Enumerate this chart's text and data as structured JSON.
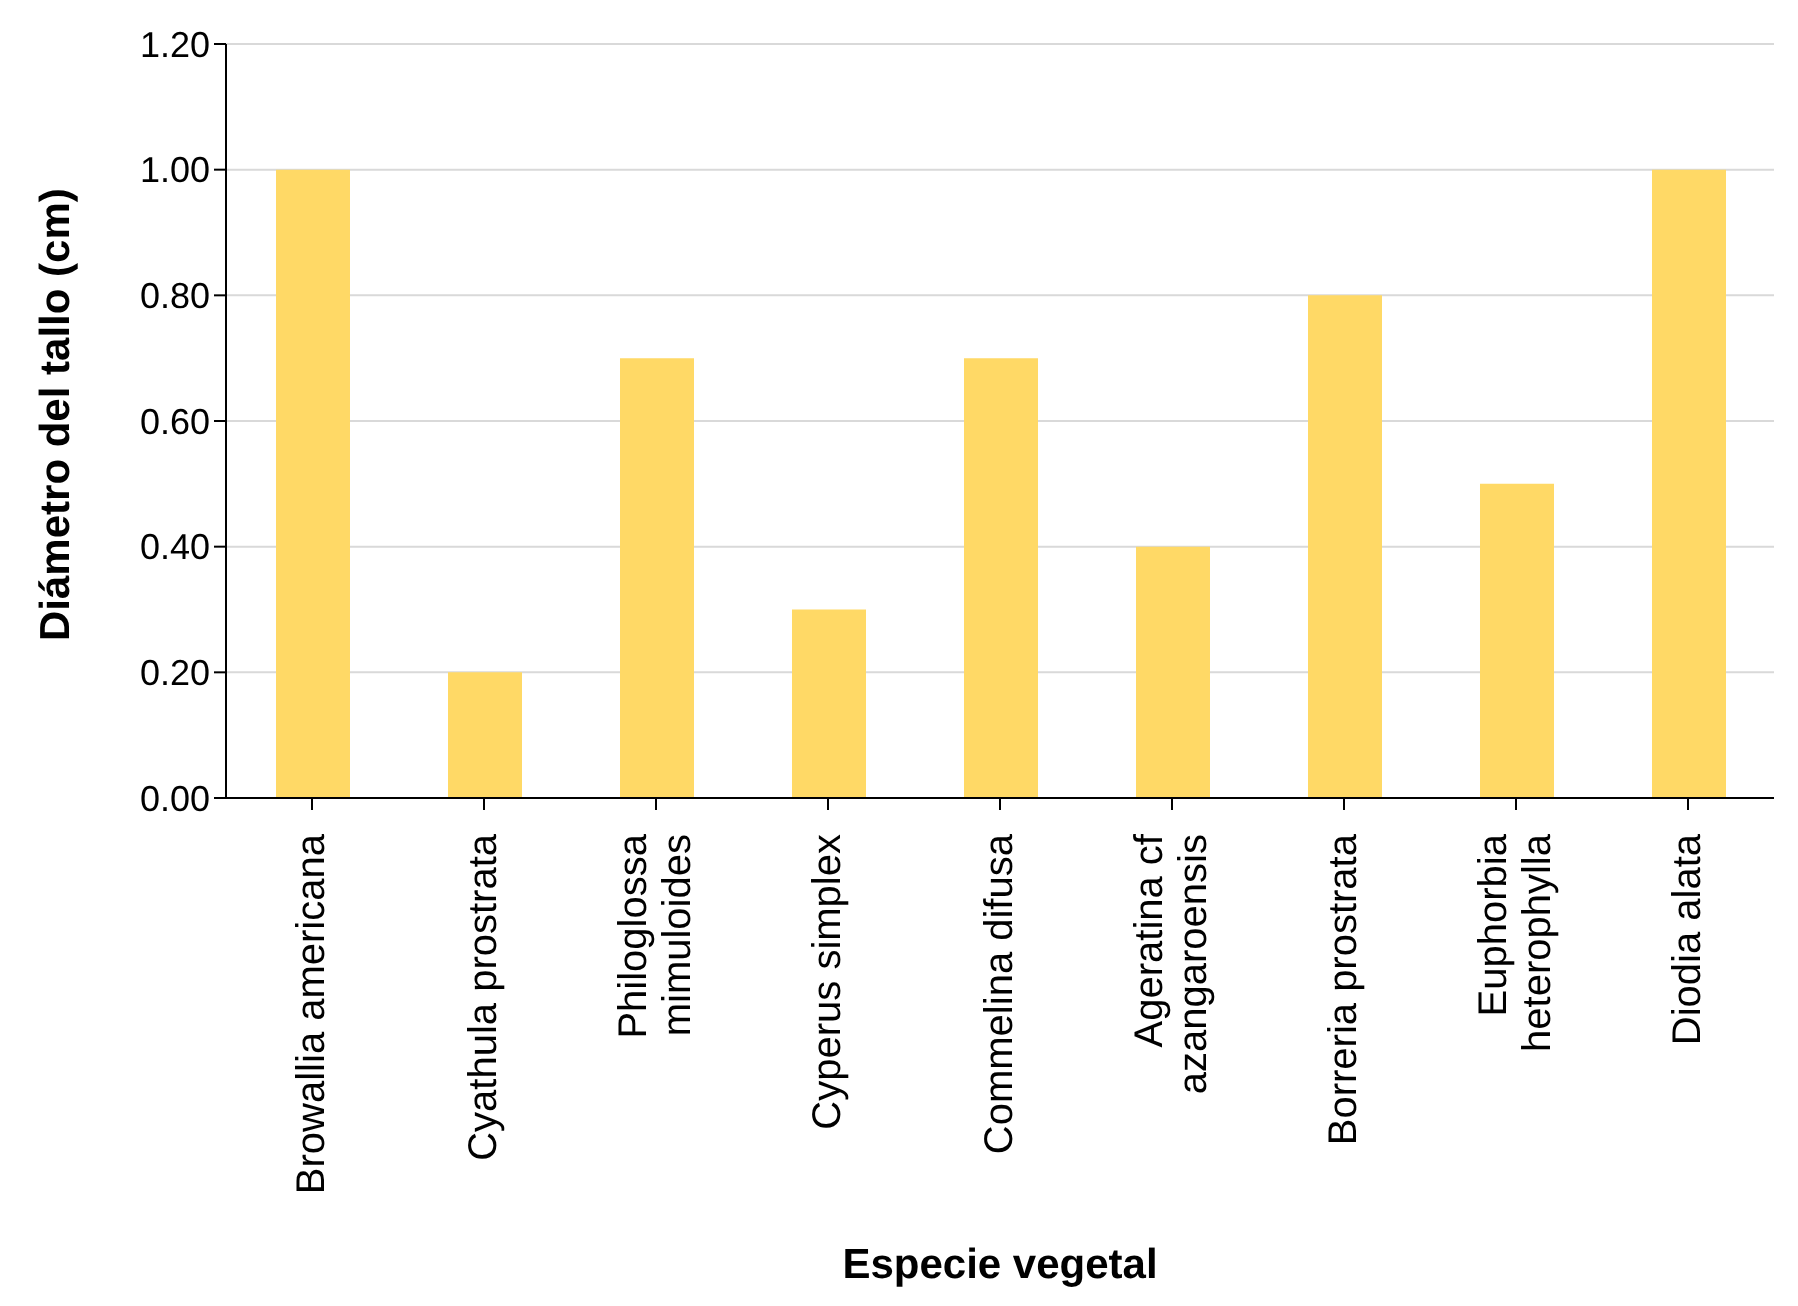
{
  "chart_data": {
    "type": "bar",
    "xlabel": "Especie vegetal",
    "ylabel": "Diámetro del tallo (cm)",
    "categories": [
      "Browallia americana",
      "Cyathula prostrata",
      "Philoglossa mimuloides",
      "Cyperus simplex",
      "Commelina difusa",
      "Ageratina cf azangaroensis",
      "Borreria prostrata",
      "Euphorbia heterophylla",
      "Diodia alata"
    ],
    "values": [
      1.0,
      0.2,
      0.7,
      0.3,
      0.7,
      0.4,
      0.8,
      0.5,
      1.0
    ],
    "color": "#ffd966",
    "ylim": [
      0,
      1.2
    ],
    "yticks": [
      {
        "value": 0,
        "label": "0.00"
      },
      {
        "value": 0.2,
        "label": "0.20"
      },
      {
        "value": 0.4,
        "label": "0.40"
      },
      {
        "value": 0.6,
        "label": "0.60"
      },
      {
        "value": 0.8,
        "label": "0.80"
      },
      {
        "value": 1.0,
        "label": "1.00"
      },
      {
        "value": 1.2,
        "label": "1.20"
      }
    ],
    "grid": "y",
    "legend": false
  }
}
